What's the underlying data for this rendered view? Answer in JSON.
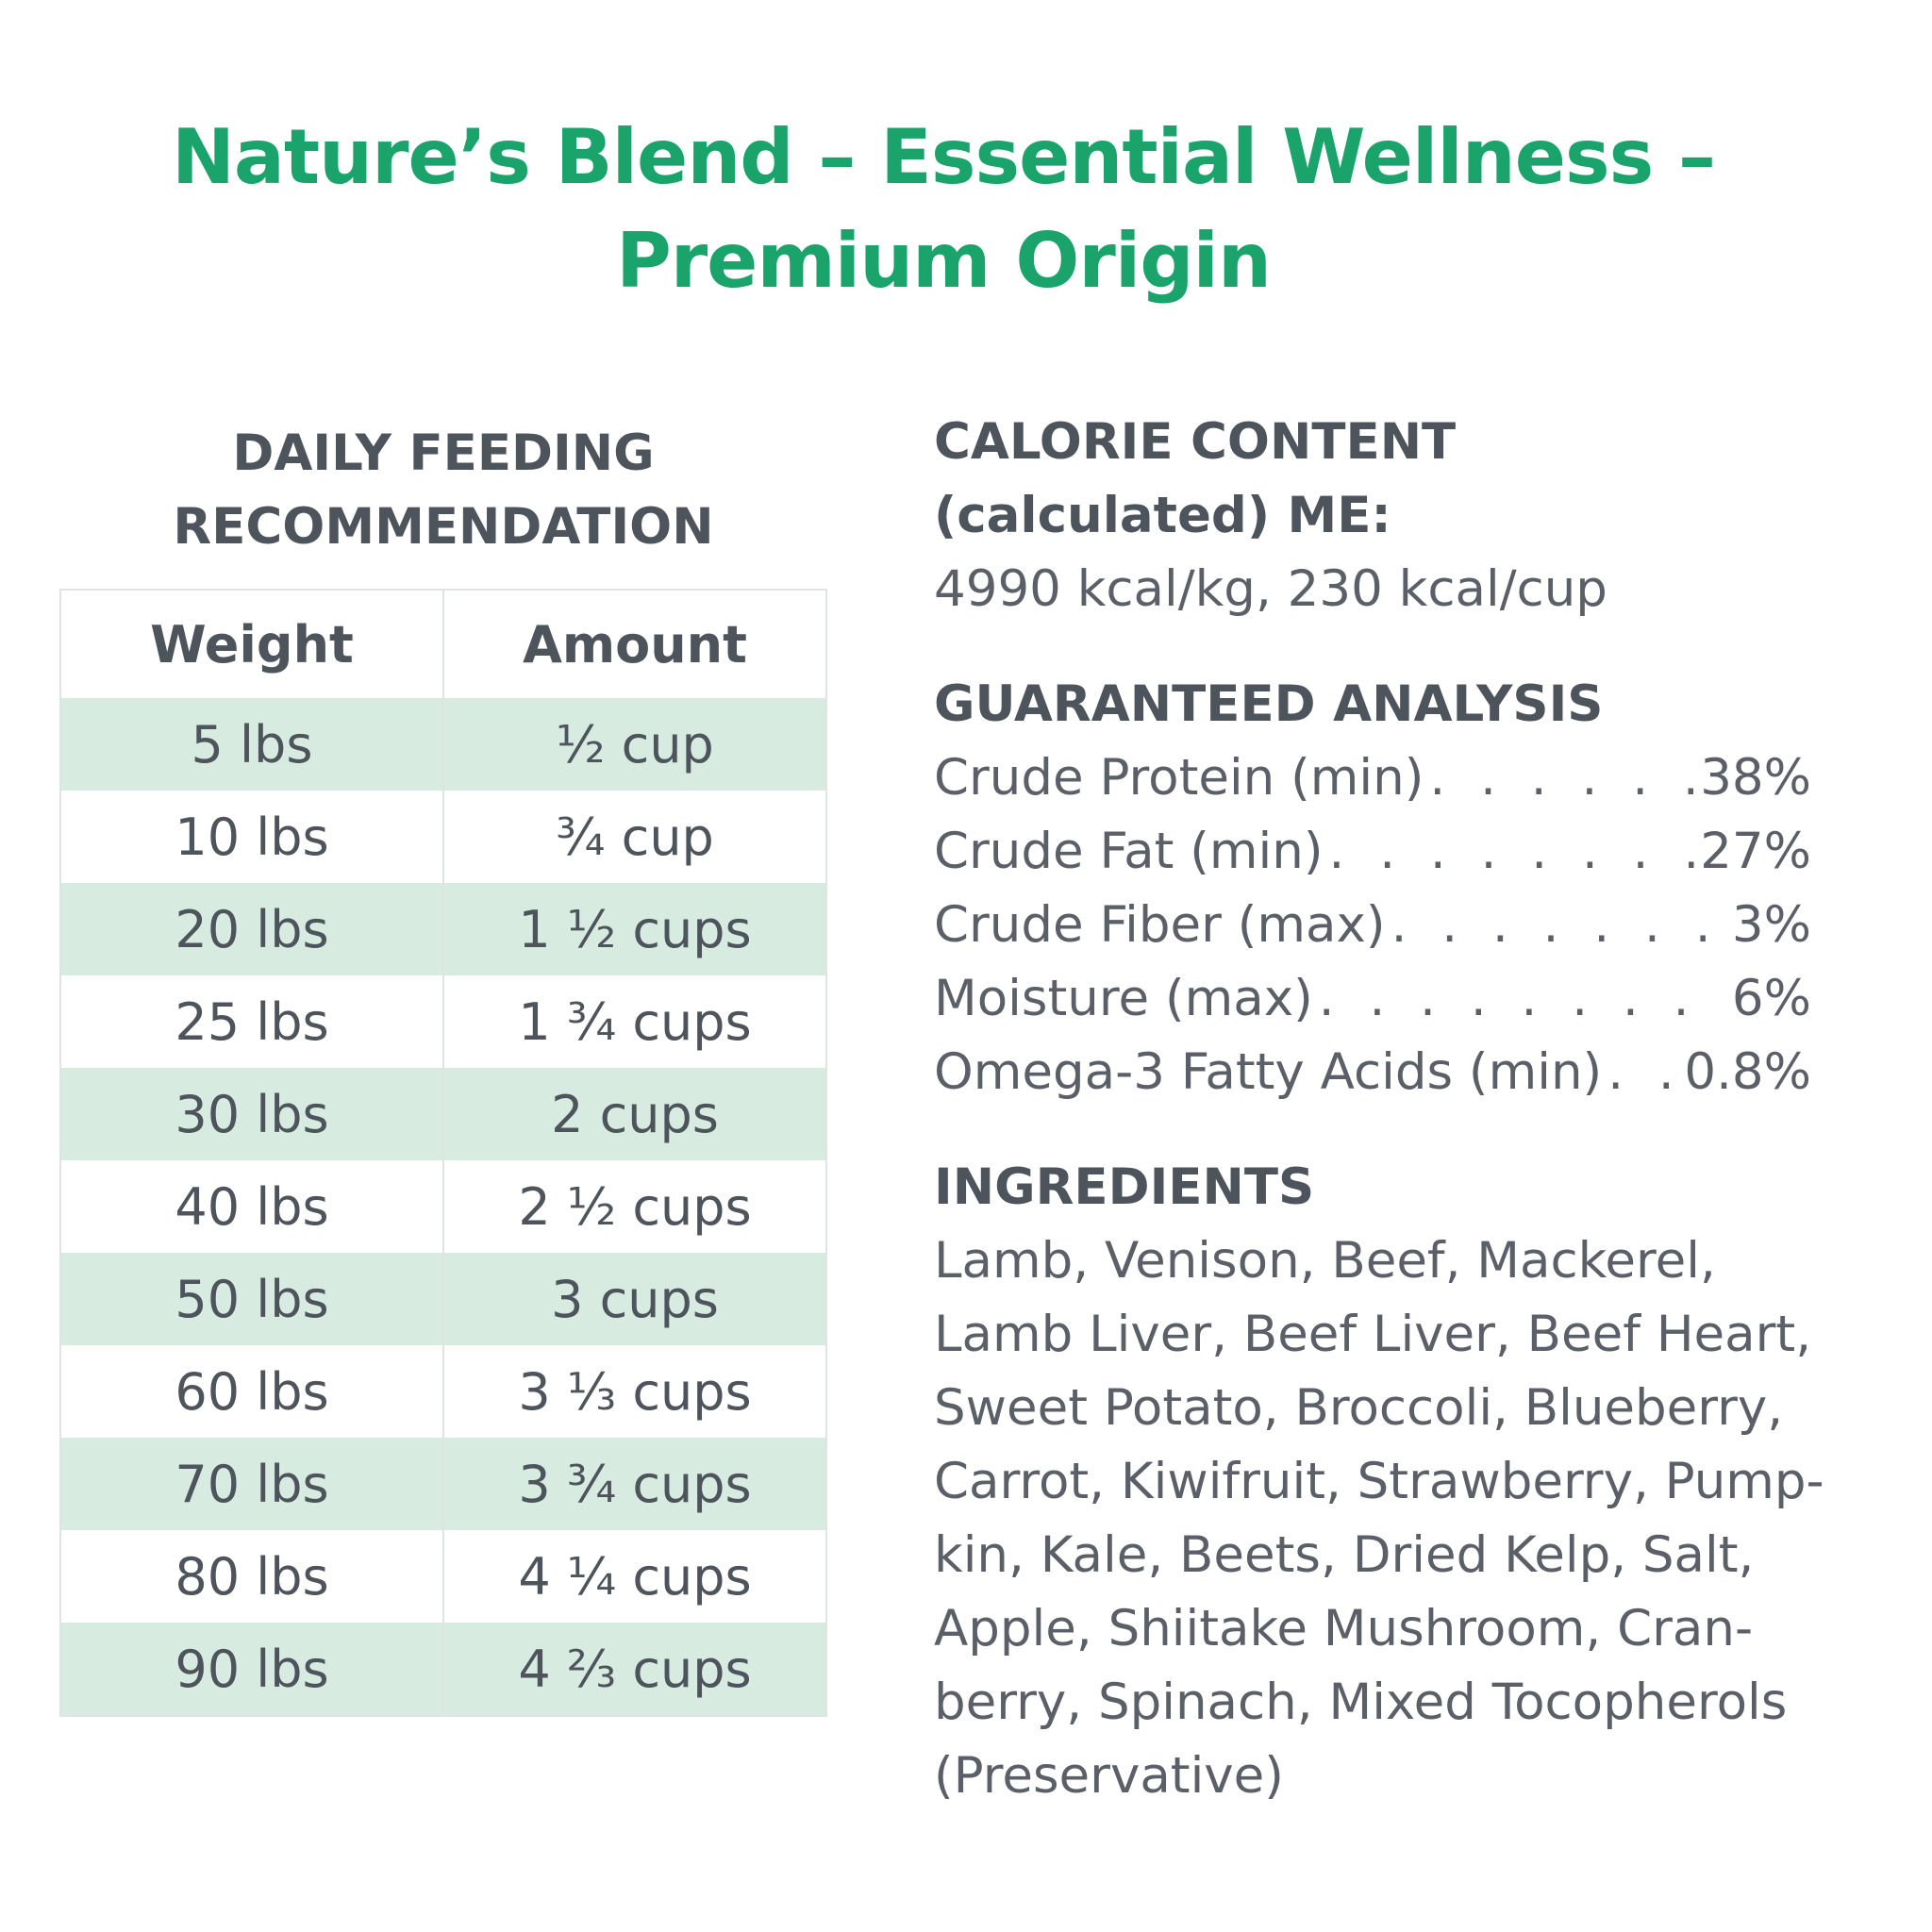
{
  "title": {
    "line1": "Nature’s Blend – Essential Wellness –",
    "line2": "Premium Origin"
  },
  "feeding": {
    "heading_line1": "DAILY FEEDING",
    "heading_line2": "RECOMMENDATION",
    "col_weight": "Weight",
    "col_amount": "Amount",
    "rows": [
      {
        "weight": "5 lbs",
        "amount": "½ cup"
      },
      {
        "weight": "10 lbs",
        "amount": "¾ cup"
      },
      {
        "weight": "20 lbs",
        "amount": "1 ½ cups"
      },
      {
        "weight": "25 lbs",
        "amount": "1 ¾ cups"
      },
      {
        "weight": "30 lbs",
        "amount": "2 cups"
      },
      {
        "weight": "40 lbs",
        "amount": "2 ½ cups"
      },
      {
        "weight": "50 lbs",
        "amount": "3 cups"
      },
      {
        "weight": "60 lbs",
        "amount": "3 ⅓ cups"
      },
      {
        "weight": "70 lbs",
        "amount": "3 ¾ cups"
      },
      {
        "weight": "80 lbs",
        "amount": "4 ¼ cups"
      },
      {
        "weight": "90 lbs",
        "amount": "4 ⅔ cups"
      }
    ]
  },
  "calorie": {
    "heading_line1": "CALORIE CONTENT",
    "heading_line2": "(calculated) ME:",
    "value": "4990 kcal/kg, 230 kcal/cup"
  },
  "analysis": {
    "heading": "GUARANTEED ANALYSIS",
    "items": [
      {
        "name": "Crude Protein (min)",
        "value": "38%"
      },
      {
        "name": "Crude Fat (min)",
        "value": "27%"
      },
      {
        "name": "Crude Fiber (max)",
        "value": "3%"
      },
      {
        "name": "Moisture (max)",
        "value": "6%"
      },
      {
        "name": "Omega-3 Fatty Acids (min)",
        "value": "0.8%"
      }
    ]
  },
  "ingredients": {
    "heading": "INGREDIENTS",
    "text": "Lamb, Venison, Beef, Mackerel, Lamb Liver, Beef Liver, Beef Heart, Sweet Potato, Broccoli, Blueberry, Carrot, Kiwifruit, Strawberry, Pump-kin, Kale, Beets, Dried Kelp, Salt, Apple, Shiitake Mushroom, Cran-berry, Spinach, Mixed Tocopherols (Preservative)"
  }
}
